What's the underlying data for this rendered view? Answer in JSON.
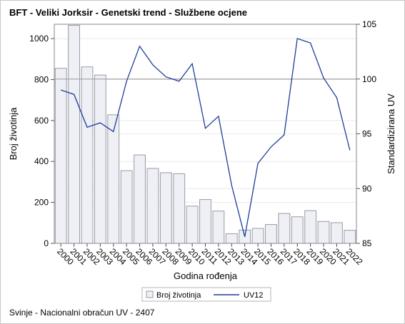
{
  "title": "BFT - Veliki Jorksir - Genetski trend - Službene ocjene",
  "footnote": "Svinje - Nacionalni obračun UV - 2407",
  "chart_data": {
    "type": "bar",
    "categories": [
      "2000",
      "2001",
      "2002",
      "2003",
      "2004",
      "2005",
      "2006",
      "2007",
      "2008",
      "2009",
      "2010",
      "2011",
      "2012",
      "2013",
      "2014",
      "2015",
      "2016",
      "2017",
      "2018",
      "2019",
      "2020",
      "2021",
      "2022"
    ],
    "xlabel": "Godina rođenja",
    "ylabel_left": "Broj životinja",
    "ylabel_right": "Standardizirana UV",
    "ylim_left": [
      0,
      1070
    ],
    "ylim_right": [
      85,
      105
    ],
    "yticks_left": [
      0,
      200,
      400,
      600,
      800,
      1000
    ],
    "yticks_right": [
      85,
      90,
      95,
      100,
      105
    ],
    "right_reference_line": 100,
    "series": [
      {
        "name": "Broj životinja",
        "type": "bar",
        "axis": "left",
        "color": "#eef0f6",
        "stroke": "#9a9aa6",
        "values": [
          855,
          1065,
          862,
          822,
          628,
          355,
          432,
          366,
          345,
          340,
          182,
          214,
          158,
          47,
          65,
          73,
          92,
          146,
          130,
          160,
          107,
          101,
          64
        ]
      },
      {
        "name": "UV12",
        "type": "line",
        "axis": "right",
        "color": "#1f3f9a",
        "values": [
          99.0,
          98.6,
          95.6,
          96.0,
          95.2,
          99.8,
          103.0,
          101.3,
          100.2,
          99.8,
          101.4,
          95.5,
          96.6,
          90.3,
          85.6,
          92.3,
          93.8,
          94.9,
          103.7,
          103.3,
          100.1,
          98.3,
          93.5
        ]
      }
    ],
    "legend_position": "bottom"
  }
}
